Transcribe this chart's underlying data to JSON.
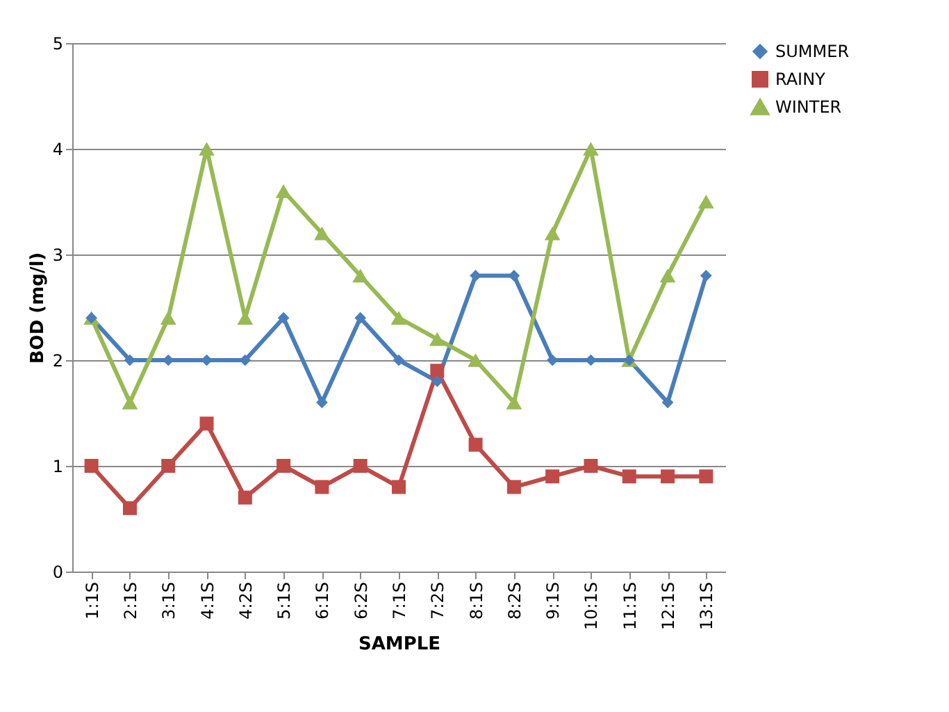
{
  "chart_data": {
    "type": "line",
    "xlabel": "SAMPLE",
    "ylabel": "BOD  (mg/l)",
    "categories": [
      "1:1S",
      "2:1S",
      "3:1S",
      "4:1S",
      "4:2S",
      "5:1S",
      "6:1S",
      "6:2S",
      "7:1S",
      "7:2S",
      "8:1S",
      "8:2S",
      "9:1S",
      "10:1S",
      "11:1S",
      "12:1S",
      "13:1S"
    ],
    "series": [
      {
        "name": "SUMMER",
        "color": "#4a7ebb",
        "marker": "diamond",
        "values": [
          2.4,
          2.0,
          2.0,
          2.0,
          2.0,
          2.4,
          1.6,
          2.4,
          2.0,
          1.8,
          2.8,
          2.8,
          2.0,
          2.0,
          2.0,
          1.6,
          2.8
        ]
      },
      {
        "name": "RAINY",
        "color": "#be4b48",
        "marker": "square",
        "values": [
          1.0,
          0.6,
          1.0,
          1.4,
          0.7,
          1.0,
          0.8,
          1.0,
          0.8,
          1.9,
          1.2,
          0.8,
          0.9,
          1.0,
          0.9,
          0.9,
          0.9
        ]
      },
      {
        "name": "WINTER",
        "color": "#98b954",
        "marker": "triangle",
        "values": [
          2.4,
          1.6,
          2.4,
          4.0,
          2.4,
          3.6,
          3.2,
          2.8,
          2.4,
          2.2,
          2.0,
          1.6,
          3.2,
          4.0,
          2.0,
          2.8,
          3.5
        ]
      }
    ],
    "ylim": [
      0,
      5
    ],
    "yticks": [
      0,
      1,
      2,
      3,
      4,
      5
    ],
    "grid": "y",
    "legend": "right"
  }
}
